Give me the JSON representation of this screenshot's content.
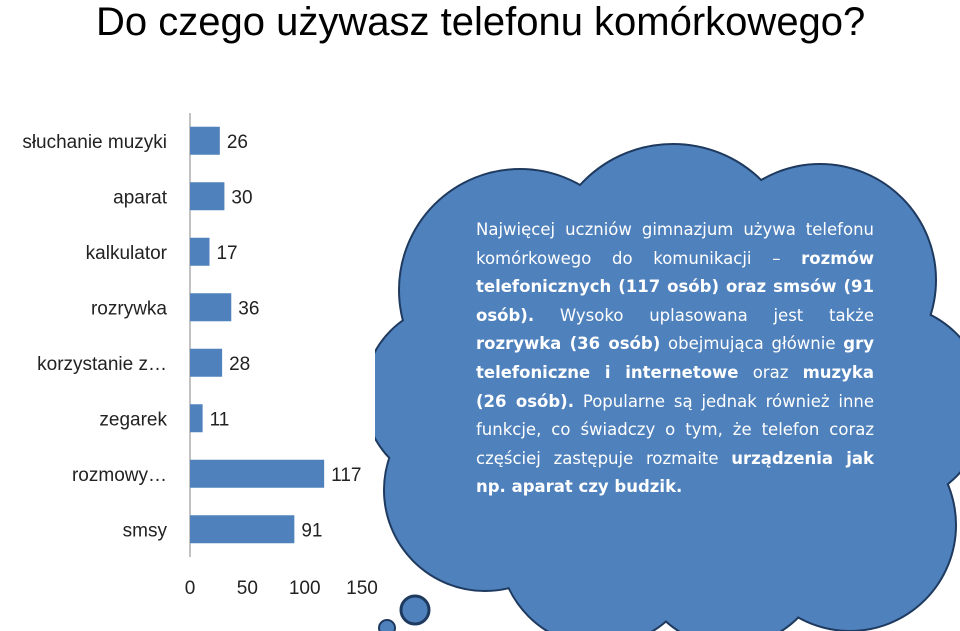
{
  "title": "Do czego używasz telefonu komórkowego?",
  "chart_data": {
    "type": "bar",
    "orientation": "horizontal",
    "categories": [
      "słuchanie muzyki",
      "aparat",
      "kalkulator",
      "rozrywka",
      "korzystanie z…",
      "zegarek",
      "rozmowy…",
      "smsy"
    ],
    "values": [
      26,
      30,
      17,
      36,
      28,
      11,
      117,
      91
    ],
    "x_ticks": [
      "0",
      "50",
      "100",
      "150"
    ],
    "xlim": [
      0,
      150
    ],
    "grid": false,
    "bar_color": "#4f81bd"
  },
  "cloud": {
    "fill_color": "#4f81bd",
    "outline_color": "#1f3a5f",
    "segments": [
      {
        "text": "Najwięcej uczniów gimnazjum używa telefonu komórkowego do komunikacji – ",
        "bold": false
      },
      {
        "text": "rozmów telefonicznych (117 osób) oraz smsów (91 osób).",
        "bold": true
      },
      {
        "text": " Wysoko uplasowana jest także ",
        "bold": false
      },
      {
        "text": "rozrywka (36 osób)",
        "bold": true
      },
      {
        "text": " obejmująca głównie ",
        "bold": false
      },
      {
        "text": "gry telefoniczne i internetowe",
        "bold": true
      },
      {
        "text": " oraz ",
        "bold": false
      },
      {
        "text": "muzyka (26 osób).",
        "bold": true
      },
      {
        "text": " Popularne są jednak również inne funkcje, co świadczy o tym, że telefon coraz częściej zastępuje rozmaite ",
        "bold": false
      },
      {
        "text": "urządzenia jak np. aparat czy budzik.",
        "bold": true
      }
    ]
  }
}
